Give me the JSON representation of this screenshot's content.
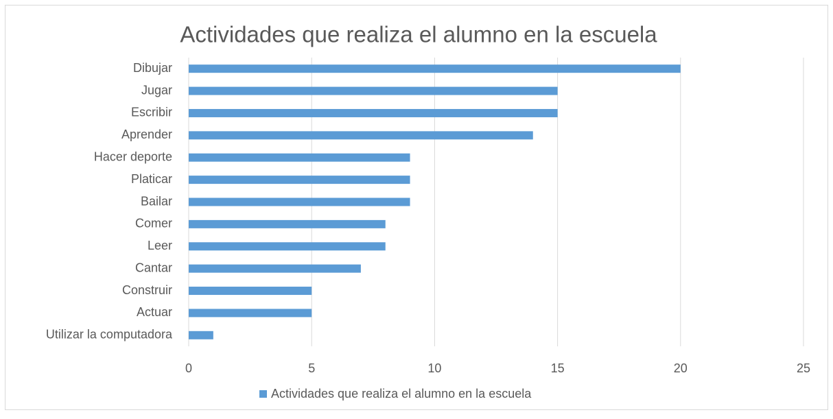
{
  "chart_data": {
    "type": "bar",
    "orientation": "horizontal",
    "title": "Actividades que realiza el alumno en la escuela",
    "categories": [
      "Dibujar",
      "Jugar",
      "Escribir",
      "Aprender",
      "Hacer deporte",
      "Platicar",
      "Bailar",
      "Comer",
      "Leer",
      "Cantar",
      "Construir",
      "Actuar",
      "Utilizar la computadora"
    ],
    "series": [
      {
        "name": "Actividades que realiza el alumno en la escuela",
        "color": "#5b9bd5",
        "values": [
          20,
          15,
          15,
          14,
          9,
          9,
          9,
          8,
          8,
          7,
          5,
          5,
          1
        ]
      }
    ],
    "xlim": [
      0,
      25
    ],
    "xticks": [
      0,
      5,
      10,
      15,
      20,
      25
    ],
    "grid": true,
    "legend": "bottom"
  }
}
